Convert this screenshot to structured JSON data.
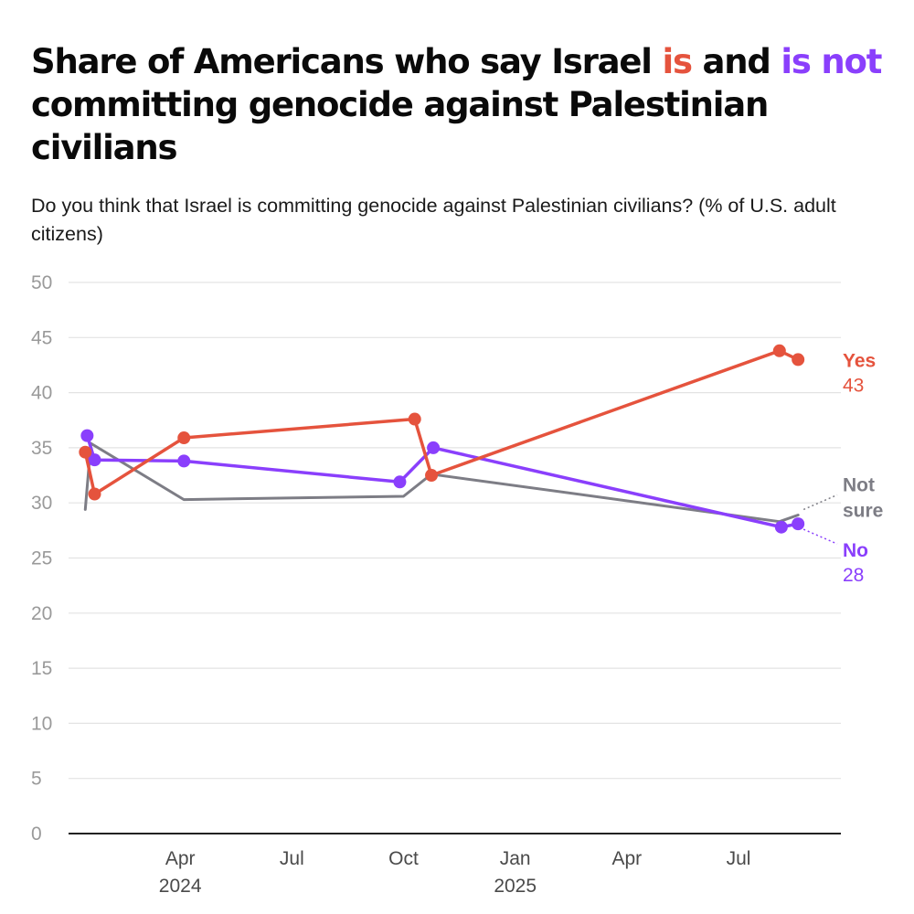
{
  "title": {
    "part1": "Share of Americans who say Israel ",
    "is": "is",
    "part2": " and ",
    "is_not": "is not",
    "part3": " committing genocide against Palestinian civilians"
  },
  "subtitle": "Do you think that Israel is committing genocide against Palestinian civilians? (% of U.S. adult citizens)",
  "colors": {
    "yes": "#e5533d",
    "no": "#8a3ffc",
    "not_sure": "#7d7d85",
    "grid": "#e3e3e3",
    "axis": "#222222"
  },
  "chart_data": {
    "type": "line",
    "title": "Share of Americans who say Israel is and is not committing genocide against Palestinian civilians",
    "ylim": [
      0,
      50
    ],
    "yticks": [
      0,
      5,
      10,
      15,
      20,
      25,
      30,
      35,
      40,
      45,
      50
    ],
    "xlim_months": [
      0,
      20.75
    ],
    "xticks": [
      {
        "month": 3,
        "label": "Apr",
        "sub": "2024"
      },
      {
        "month": 6,
        "label": "Jul",
        "sub": ""
      },
      {
        "month": 9,
        "label": "Oct",
        "sub": ""
      },
      {
        "month": 12,
        "label": "Jan",
        "sub": "2025"
      },
      {
        "month": 15,
        "label": "Apr",
        "sub": ""
      },
      {
        "month": 18,
        "label": "Jul",
        "sub": ""
      }
    ],
    "x_unit": "months since Jan 2024",
    "series": [
      {
        "name": "Yes",
        "key": "yes",
        "label": "Yes",
        "end_value": "43",
        "points": [
          {
            "x": 0.45,
            "y": 34.6
          },
          {
            "x": 0.7,
            "y": 30.8
          },
          {
            "x": 3.1,
            "y": 35.9
          },
          {
            "x": 9.3,
            "y": 37.6
          },
          {
            "x": 9.75,
            "y": 32.5
          },
          {
            "x": 19.1,
            "y": 43.8
          },
          {
            "x": 19.6,
            "y": 43.0
          }
        ],
        "markers": true
      },
      {
        "name": "No",
        "key": "no",
        "label": "No",
        "end_value": "28",
        "points": [
          {
            "x": 0.5,
            "y": 36.1
          },
          {
            "x": 0.7,
            "y": 33.9
          },
          {
            "x": 3.1,
            "y": 33.8
          },
          {
            "x": 8.9,
            "y": 31.9
          },
          {
            "x": 9.8,
            "y": 35.0
          },
          {
            "x": 19.15,
            "y": 27.8
          },
          {
            "x": 19.6,
            "y": 28.1
          }
        ],
        "markers": true
      },
      {
        "name": "Not sure",
        "key": "not_sure",
        "label": [
          "Not",
          "sure"
        ],
        "points": [
          {
            "x": 0.45,
            "y": 29.4
          },
          {
            "x": 0.6,
            "y": 35.4
          },
          {
            "x": 3.1,
            "y": 30.3
          },
          {
            "x": 9.0,
            "y": 30.6
          },
          {
            "x": 9.75,
            "y": 32.6
          },
          {
            "x": 19.1,
            "y": 28.3
          },
          {
            "x": 19.6,
            "y": 28.9
          }
        ],
        "markers": false
      }
    ]
  }
}
